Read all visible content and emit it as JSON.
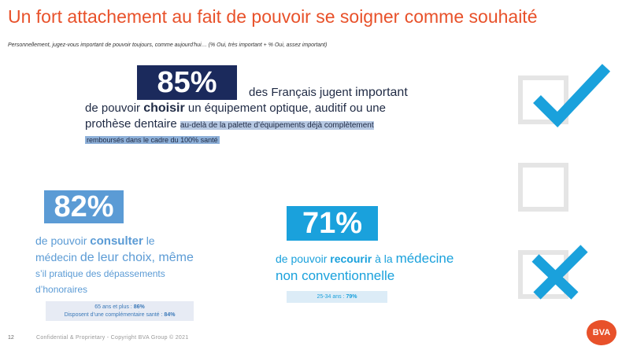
{
  "title": "Un fort attachement au fait de pouvoir se soigner comme souhaité",
  "subtitle": "Personnellement, jugez-vous important de pouvoir toujours, comme aujourd'hui… (% Oui, très important + % Oui, assez important)",
  "stat1": {
    "value": "85%",
    "t1": "des Français jugent",
    "t2": "important",
    "t3": "de pouvoir",
    "t4": "choisir",
    "t5": "un équipement optique, auditif ou une",
    "t6": "prothèse dentaire",
    "t7": "au-",
    "t8": "delà de la palette d’équipements déjà complètement",
    "t9": "remboursés dans le cadre du 100% santé"
  },
  "stat2": {
    "value": "82%",
    "t1": "de pouvoir",
    "t2": "consulter",
    "t3": "le",
    "t4": "médecin",
    "t5": "de leur choix, même",
    "t6": "s’il pratique des dépassements",
    "t7": "d’honoraires",
    "note_l1": "65 ans et plus :",
    "note_v1": "86%",
    "note_l2": "Disposent d’une complémentaire santé :",
    "note_v2": "84%"
  },
  "stat3": {
    "value": "71%",
    "t1": "de pouvoir",
    "t2": "recourir",
    "t3": "à la",
    "t4": "médecine",
    "t5": "non conventionnelle",
    "note_l1": "25-34 ans :",
    "note_v1": "79%"
  },
  "colors": {
    "title": "#e8512a",
    "navy": "#1b2a5c",
    "mid_blue": "#5b9bd5",
    "cyan": "#1aa1dc"
  },
  "icons": [
    "checkmark-icon",
    "empty-checkbox-icon",
    "cross-icon"
  ],
  "footer": {
    "page": "12",
    "text": "Confidential & Proprietary - Copyright BVA Group © 2021",
    "logo": "BVA"
  }
}
